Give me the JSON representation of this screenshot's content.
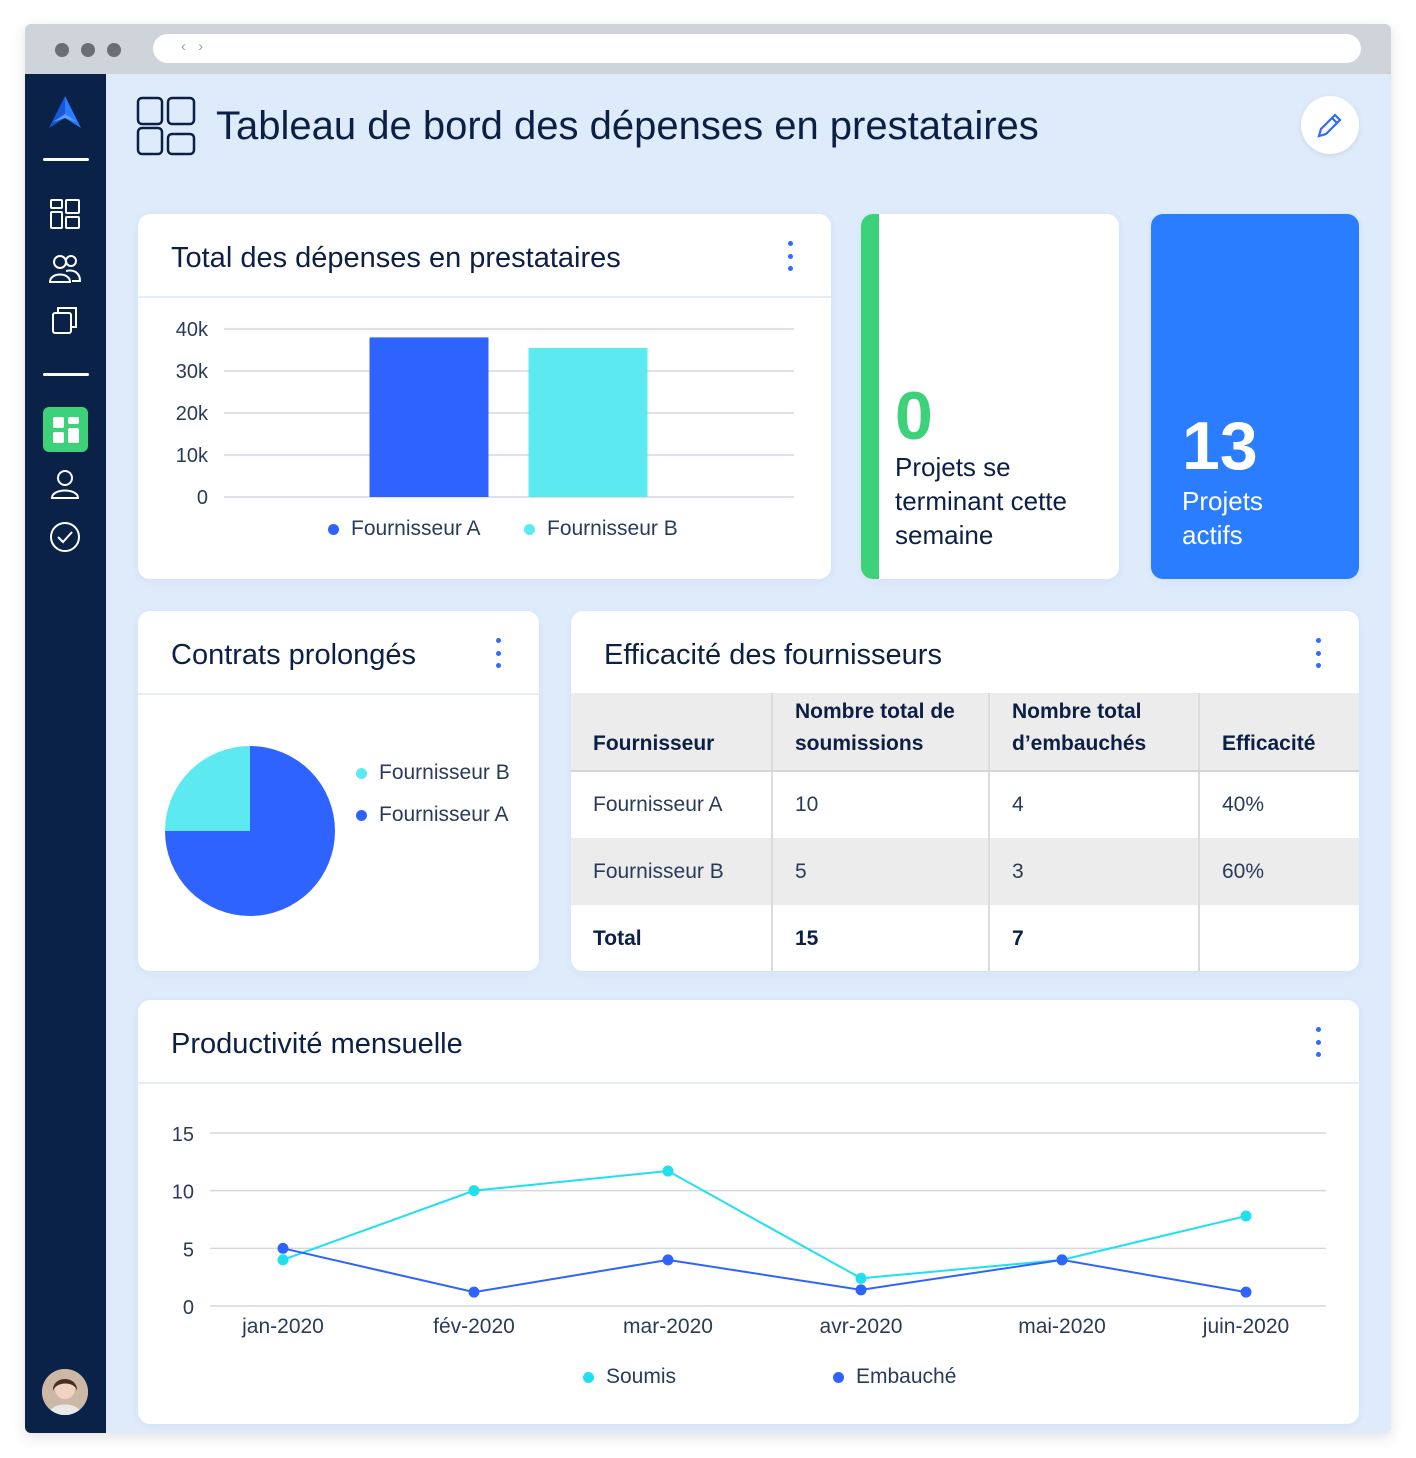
{
  "page": {
    "title": "Tableau de bord des dépenses en prestataires"
  },
  "colors": {
    "sidebar": "#0a2148",
    "accent_blue": "#2f63ff",
    "accent_cyan": "#5ceaf0",
    "kpi_green": "#3dd17a",
    "kpi_blue": "#2b7dff",
    "background": "#deebfb"
  },
  "sidebar": {
    "logo": "brand-logo",
    "items": [
      {
        "icon": "dashboard-grid-icon"
      },
      {
        "icon": "team-icon"
      },
      {
        "icon": "documents-icon"
      },
      {
        "icon": "dashboard-tiles-icon",
        "active": true
      },
      {
        "icon": "user-icon"
      },
      {
        "icon": "check-circle-icon"
      }
    ]
  },
  "spend_card": {
    "title": "Total des dépenses en prestataires"
  },
  "kpi_ending": {
    "value": "0",
    "label_lines": [
      "Projets se",
      "terminant cette",
      "semaine"
    ]
  },
  "kpi_active": {
    "value": "13",
    "label_lines": [
      "Projets",
      "actifs"
    ]
  },
  "contracts_card": {
    "title": "Contrats prolongés"
  },
  "efficiency_card": {
    "title": "Efficacité des fournisseurs",
    "headers": [
      "Fournisseur",
      [
        "Nombre total de",
        "soumissions"
      ],
      [
        "Nombre total",
        "d’embauchés"
      ],
      "Efficacité"
    ],
    "rows": [
      [
        "Fournisseur A",
        "10",
        "4",
        "40%"
      ],
      [
        "Fournisseur B",
        "5",
        "3",
        "60%"
      ]
    ],
    "total": [
      "Total",
      "15",
      "7",
      ""
    ]
  },
  "productivity_card": {
    "title": "Productivité mensuelle"
  },
  "chart_data": [
    {
      "type": "bar",
      "categories": [
        "Fournisseur A",
        "Fournisseur B"
      ],
      "values": [
        38000,
        35500
      ],
      "colors": [
        "#2f63ff",
        "#5ceaf0"
      ],
      "yticks": [
        "0",
        "10k",
        "20k",
        "30k",
        "40k"
      ],
      "ylim": [
        0,
        40000
      ],
      "legend": [
        "Fournisseur A",
        "Fournisseur B"
      ],
      "legend_position": "bottom",
      "grid": true
    },
    {
      "type": "pie",
      "labels": [
        "Fournisseur B",
        "Fournisseur A"
      ],
      "values": [
        25,
        75
      ],
      "colors": [
        "#5ceaf0",
        "#2f63ff"
      ],
      "legend_position": "right"
    },
    {
      "type": "line",
      "x": [
        "jan-2020",
        "fév-2020",
        "mar-2020",
        "avr-2020",
        "mai-2020",
        "juin-2020"
      ],
      "series": [
        {
          "name": "Soumis",
          "values": [
            4,
            10,
            11.7,
            2.4,
            4,
            7.8
          ],
          "color": "#1ee0ee"
        },
        {
          "name": "Embauché",
          "values": [
            5,
            1.2,
            4,
            1.4,
            4,
            1.2
          ],
          "color": "#2f63ff"
        }
      ],
      "yticks": [
        "0",
        "5",
        "10",
        "15"
      ],
      "ylim": [
        0,
        15
      ],
      "legend_position": "bottom",
      "grid": true
    }
  ]
}
